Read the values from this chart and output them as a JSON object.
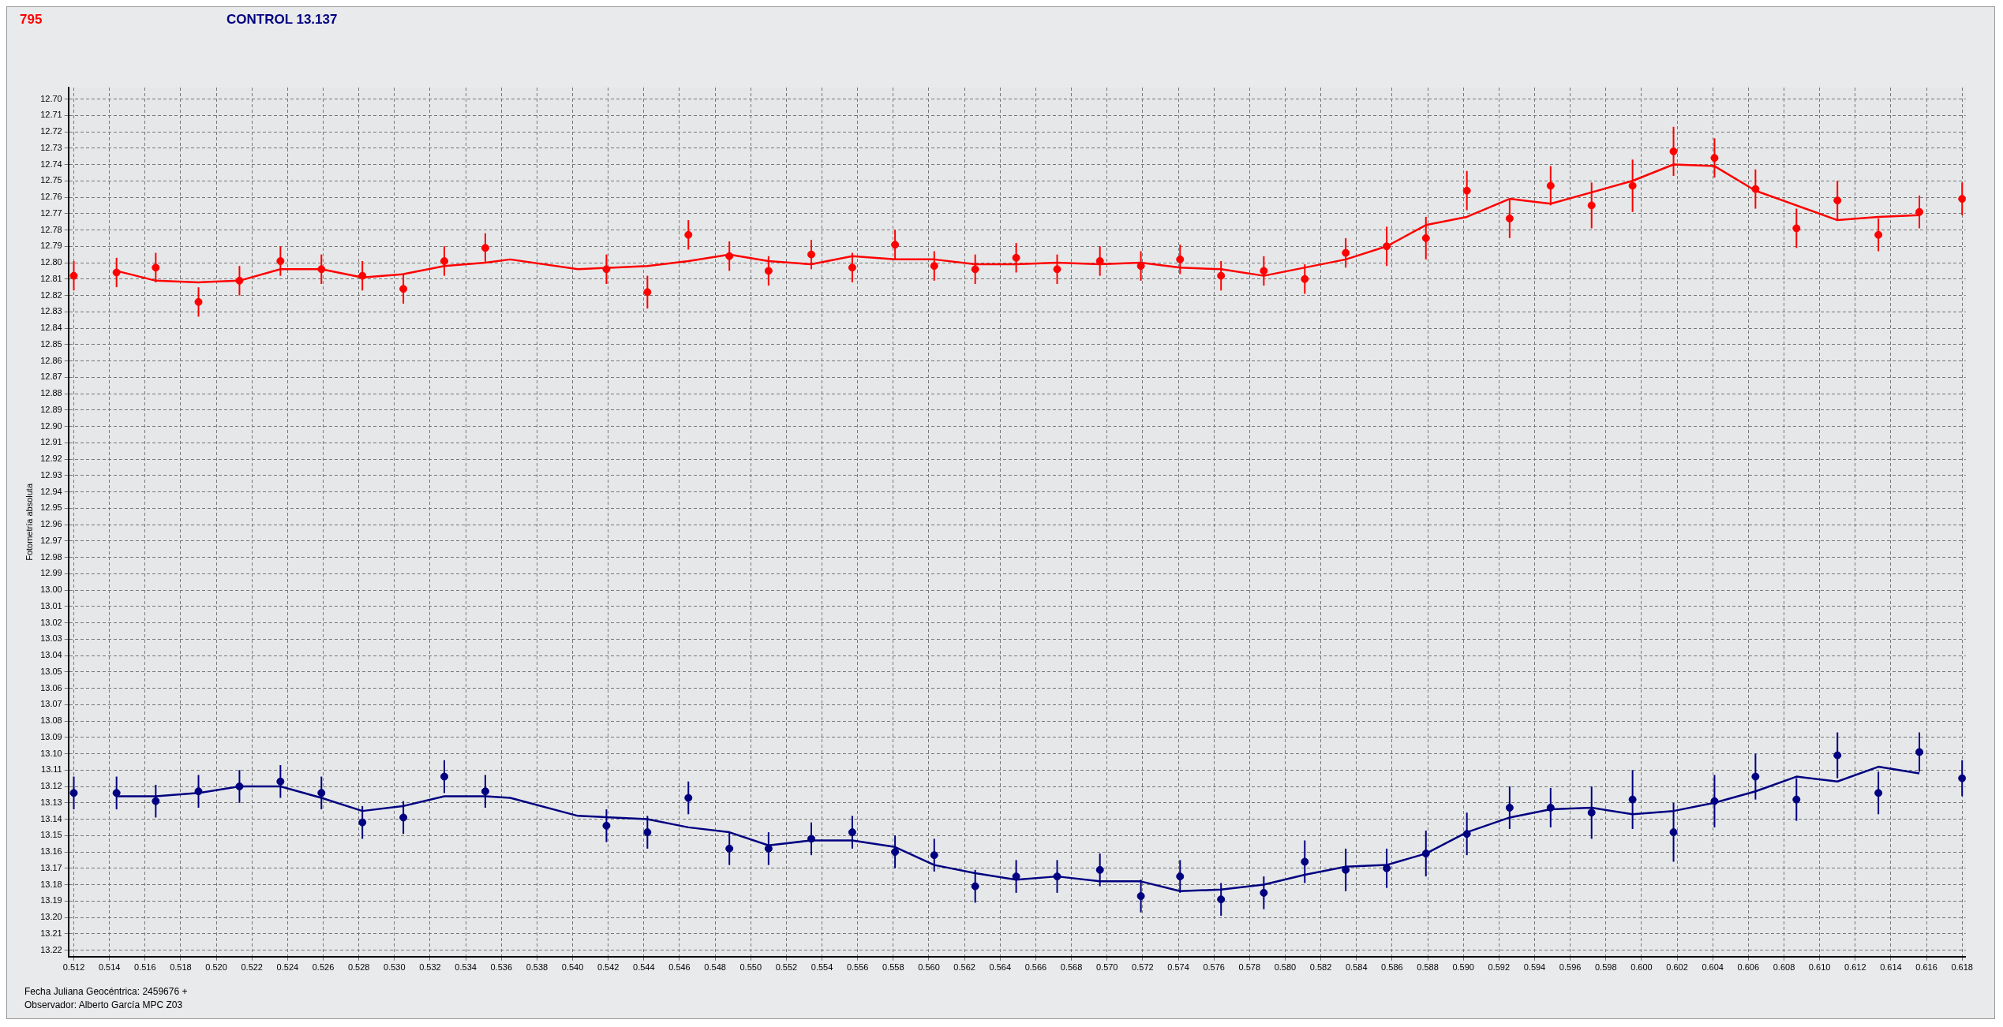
{
  "chart_data": {
    "type": "scatter",
    "title": "795",
    "subtitle": "CONTROL 13.137",
    "ylabel": "Fotometría absoluta",
    "annotations": [
      "Fecha Juliana Geocéntrica: 2459676 +",
      "Observador: Alberto García MPC Z03"
    ],
    "xlim": [
      0.5117,
      0.6182
    ],
    "xticks": [
      0.512,
      0.514,
      0.516,
      0.518,
      {
        "value": 0.52,
        "label": "0.520"
      },
      0.522,
      0.524,
      0.526,
      0.528,
      {
        "value": 0.53,
        "label": "0.530"
      },
      0.532,
      0.534,
      0.536,
      0.538,
      {
        "value": 0.54,
        "label": "0.540"
      },
      0.542,
      0.544,
      0.546,
      0.548,
      {
        "value": 0.55,
        "label": "0.550"
      },
      0.552,
      0.554,
      0.556,
      0.558,
      {
        "value": 0.56,
        "label": "0.560"
      },
      0.562,
      0.564,
      0.566,
      0.568,
      {
        "value": 0.57,
        "label": "0.570"
      },
      0.572,
      0.574,
      0.576,
      0.578,
      {
        "value": 0.58,
        "label": "0.580"
      },
      0.582,
      0.584,
      0.586,
      0.588,
      {
        "value": 0.59,
        "label": "0.590"
      },
      0.592,
      0.594,
      0.596,
      0.598,
      {
        "value": 0.6,
        "label": "0.600"
      },
      0.602,
      0.604,
      0.606,
      0.608,
      {
        "value": 0.61,
        "label": "0.610"
      },
      0.612,
      0.614,
      0.616,
      0.618
    ],
    "ylim": [
      13.224,
      12.693
    ],
    "yticks": [
      {
        "value": 12.7,
        "label": "12.70"
      },
      12.71,
      12.72,
      12.73,
      12.74,
      12.75,
      12.76,
      12.77,
      12.78,
      12.79,
      {
        "value": 12.8,
        "label": "12.80"
      },
      12.81,
      12.82,
      12.83,
      12.84,
      12.85,
      12.86,
      12.87,
      12.88,
      12.89,
      {
        "value": 12.9,
        "label": "12.90"
      },
      12.91,
      12.92,
      12.93,
      12.94,
      12.95,
      12.96,
      12.97,
      12.98,
      12.99,
      {
        "value": 13,
        "label": "13.00"
      },
      13.01,
      13.02,
      13.03,
      13.04,
      13.05,
      13.06,
      13.07,
      13.08,
      13.09,
      {
        "value": 13.1,
        "label": "13.10"
      },
      13.11,
      13.12,
      13.13,
      13.14,
      13.15,
      13.16,
      13.17,
      13.18,
      13.19,
      {
        "value": 13.2,
        "label": "13.20"
      },
      13.21,
      13.22
    ],
    "grid": true,
    "legend": false,
    "series": [
      {
        "marker": "circle",
        "color": "#ff0000",
        "x": [
          0.512,
          0.5144,
          0.5166,
          0.519,
          0.5213,
          0.5236,
          0.5259,
          0.5282,
          0.5305,
          0.5328,
          0.5351,
          0.5419,
          0.5442,
          0.5465,
          0.5488,
          0.551,
          0.5534,
          0.5557,
          0.5581,
          0.5603,
          0.5626,
          0.5649,
          0.5672,
          0.5696,
          0.5719,
          0.5741,
          0.5764,
          0.5788,
          0.5811,
          0.5834,
          0.5857,
          0.5879,
          0.5902,
          0.5926,
          0.5949,
          0.5972,
          0.5995,
          0.6018,
          0.6041,
          0.6064,
          0.6087,
          0.611,
          0.6133,
          0.6156,
          0.618
        ],
        "values": [
          12.808,
          12.806,
          12.803,
          12.824,
          12.811,
          12.799,
          12.804,
          12.808,
          12.816,
          12.799,
          12.791,
          12.804,
          12.818,
          12.783,
          12.796,
          12.805,
          12.795,
          12.803,
          12.789,
          12.802,
          12.804,
          12.797,
          12.804,
          12.799,
          12.802,
          12.798,
          12.808,
          12.805,
          12.81,
          12.794,
          12.79,
          12.785,
          12.756,
          12.773,
          12.753,
          12.765,
          12.753,
          12.732,
          12.736,
          12.755,
          12.779,
          12.762,
          12.783,
          12.769,
          12.761
        ],
        "errors": [
          0.009,
          0.009,
          0.009,
          0.009,
          0.009,
          0.009,
          0.009,
          0.009,
          0.009,
          0.009,
          0.009,
          0.009,
          0.01,
          0.009,
          0.009,
          0.009,
          0.009,
          0.009,
          0.009,
          0.009,
          0.009,
          0.009,
          0.009,
          0.009,
          0.009,
          0.009,
          0.009,
          0.009,
          0.009,
          0.009,
          0.012,
          0.013,
          0.012,
          0.012,
          0.012,
          0.014,
          0.016,
          0.015,
          0.012,
          0.012,
          0.012,
          0.012,
          0.01,
          0.01,
          0.01
        ]
      },
      {
        "type": "line",
        "marker": "none",
        "color": "#ff0000",
        "line_style": "solid",
        "x": [
          0.5144,
          0.5166,
          0.519,
          0.5213,
          0.5236,
          0.5259,
          0.5282,
          0.5305,
          0.5328,
          0.5351,
          0.5365,
          0.5403,
          0.5442,
          0.5465,
          0.5488,
          0.551,
          0.5534,
          0.5557,
          0.5581,
          0.5603,
          0.5626,
          0.5649,
          0.5672,
          0.5696,
          0.5719,
          0.5741,
          0.5764,
          0.5788,
          0.5834,
          0.5857,
          0.5879,
          0.5902,
          0.5926,
          0.5949,
          0.5995,
          0.6018,
          0.6041,
          0.6064,
          0.611,
          0.6133,
          0.6156
        ],
        "values": [
          12.805,
          12.811,
          12.812,
          12.811,
          12.804,
          12.804,
          12.809,
          12.807,
          12.802,
          12.8,
          12.798,
          12.804,
          12.802,
          12.799,
          12.795,
          12.799,
          12.801,
          12.796,
          12.798,
          12.798,
          12.801,
          12.801,
          12.8,
          12.801,
          12.8,
          12.803,
          12.804,
          12.808,
          12.798,
          12.79,
          12.777,
          12.772,
          12.761,
          12.764,
          12.75,
          12.74,
          12.741,
          12.756,
          12.774,
          12.772,
          12.771
        ]
      },
      {
        "marker": "circle",
        "color": "#000080",
        "x": [
          0.512,
          0.5144,
          0.5166,
          0.519,
          0.5213,
          0.5236,
          0.5259,
          0.5282,
          0.5305,
          0.5328,
          0.5351,
          0.5419,
          0.5442,
          0.5465,
          0.5488,
          0.551,
          0.5534,
          0.5557,
          0.5581,
          0.5603,
          0.5626,
          0.5649,
          0.5672,
          0.5696,
          0.5719,
          0.5741,
          0.5764,
          0.5788,
          0.5811,
          0.5834,
          0.5857,
          0.5879,
          0.5902,
          0.5926,
          0.5949,
          0.5972,
          0.5995,
          0.6018,
          0.6041,
          0.6064,
          0.6087,
          0.611,
          0.6133,
          0.6156,
          0.618
        ],
        "values": [
          13.124,
          13.124,
          13.129,
          13.123,
          13.12,
          13.117,
          13.124,
          13.142,
          13.139,
          13.114,
          13.123,
          13.144,
          13.148,
          13.127,
          13.158,
          13.158,
          13.152,
          13.148,
          13.16,
          13.162,
          13.181,
          13.175,
          13.175,
          13.171,
          13.187,
          13.175,
          13.189,
          13.185,
          13.166,
          13.171,
          13.17,
          13.161,
          13.149,
          13.133,
          13.133,
          13.136,
          13.128,
          13.148,
          13.129,
          13.114,
          13.128,
          13.101,
          13.124,
          13.099,
          13.115
        ],
        "errors": [
          0.01,
          0.01,
          0.01,
          0.01,
          0.01,
          0.01,
          0.01,
          0.01,
          0.01,
          0.01,
          0.01,
          0.01,
          0.01,
          0.01,
          0.01,
          0.01,
          0.01,
          0.01,
          0.01,
          0.01,
          0.01,
          0.01,
          0.01,
          0.01,
          0.01,
          0.01,
          0.01,
          0.01,
          0.013,
          0.013,
          0.012,
          0.014,
          0.013,
          0.013,
          0.012,
          0.016,
          0.018,
          0.018,
          0.016,
          0.014,
          0.013,
          0.014,
          0.013,
          0.012,
          0.011
        ]
      },
      {
        "type": "line",
        "marker": "none",
        "color": "#000080",
        "line_style": "solid",
        "x": [
          0.5144,
          0.5166,
          0.519,
          0.5213,
          0.5236,
          0.5259,
          0.5282,
          0.5305,
          0.5328,
          0.5351,
          0.5365,
          0.5403,
          0.5442,
          0.5465,
          0.5488,
          0.551,
          0.5534,
          0.5557,
          0.5581,
          0.5603,
          0.5626,
          0.5649,
          0.5672,
          0.5696,
          0.5719,
          0.5741,
          0.5764,
          0.5788,
          0.5811,
          0.5834,
          0.5857,
          0.5879,
          0.5902,
          0.5926,
          0.5949,
          0.5972,
          0.5995,
          0.6018,
          0.6041,
          0.6064,
          0.6087,
          0.611,
          0.6133,
          0.6156
        ],
        "values": [
          13.126,
          13.126,
          13.124,
          13.12,
          13.12,
          13.127,
          13.135,
          13.132,
          13.126,
          13.126,
          13.127,
          13.138,
          13.14,
          13.145,
          13.148,
          13.156,
          13.153,
          13.153,
          13.157,
          13.168,
          13.173,
          13.177,
          13.175,
          13.178,
          13.178,
          13.184,
          13.183,
          13.18,
          13.174,
          13.169,
          13.168,
          13.161,
          13.148,
          13.139,
          13.134,
          13.133,
          13.137,
          13.135,
          13.13,
          13.123,
          13.114,
          13.117,
          13.108,
          13.112
        ]
      }
    ]
  }
}
